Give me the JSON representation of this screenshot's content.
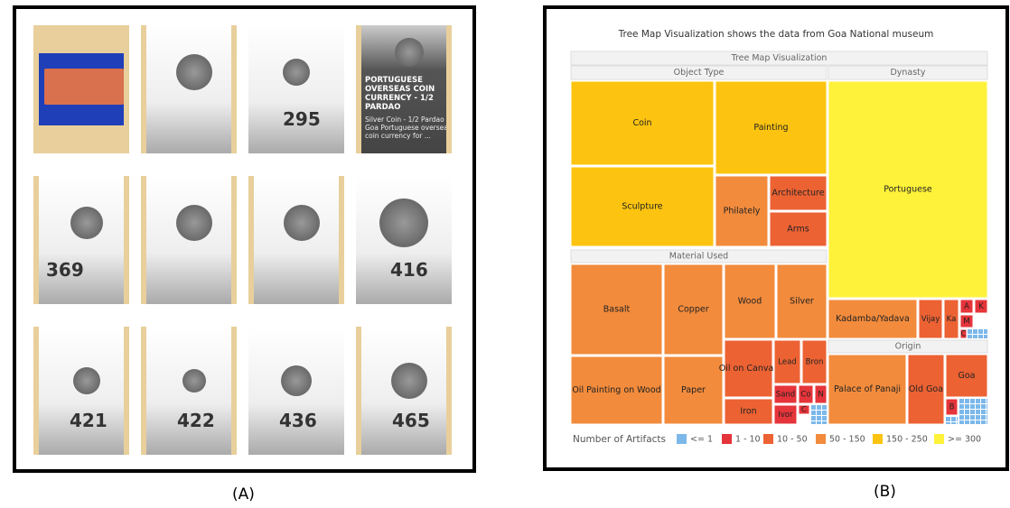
{
  "panel_a": {
    "tiles": [
      {
        "number": null
      },
      {
        "number": null
      },
      {
        "number": "295"
      },
      {
        "title": "PORTUGUESE OVERSEAS COIN CURRENCY - 1/2 PARDAO",
        "description": "Silver Coin - 1/2 Pardao of Goa Portuguese overseas coin currency for ..."
      },
      {
        "number": "369"
      },
      {
        "number": null
      },
      {
        "number": null
      },
      {
        "number": "416"
      },
      {
        "number": "421"
      },
      {
        "number": "422"
      },
      {
        "number": "436"
      },
      {
        "number": "465"
      }
    ],
    "caption": "(A)"
  },
  "panel_b": {
    "title": "Tree Map Visualization shows the data from Goa National museum",
    "treemap": {
      "title": "Tree Map Visualization",
      "groups": [
        {
          "name": "Object Type",
          "cells": [
            {
              "label": "Coin",
              "color": "#fcc410"
            },
            {
              "label": "Painting",
              "color": "#fcc410"
            },
            {
              "label": "Sculpture",
              "color": "#fcc410"
            },
            {
              "label": "Philately",
              "color": "#f28b3c"
            },
            {
              "label": "Architecture",
              "color": "#ec6233"
            },
            {
              "label": "Arms",
              "color": "#ec6233"
            }
          ]
        },
        {
          "name": "Material Used",
          "cells": [
            {
              "label": "Basalt",
              "color": "#f28b3c"
            },
            {
              "label": "Copper",
              "color": "#f28b3c"
            },
            {
              "label": "Wood",
              "color": "#f28b3c"
            },
            {
              "label": "Silver",
              "color": "#f28b3c"
            },
            {
              "label": "Oil Painting on Wood",
              "color": "#f28b3c"
            },
            {
              "label": "Paper",
              "color": "#f28b3c"
            },
            {
              "label": "Oil on Canvas",
              "color": "#ec6233"
            },
            {
              "label": "Iron",
              "color": "#ec6233"
            },
            {
              "label": "Lead",
              "color": "#ec6233"
            },
            {
              "label": "Bron",
              "color": "#ec6233"
            },
            {
              "label": "Sand",
              "color": "#e5343a"
            },
            {
              "label": "Co",
              "color": "#e5343a"
            },
            {
              "label": "N",
              "color": "#e5343a"
            },
            {
              "label": "Ivor",
              "color": "#e5343a"
            },
            {
              "label": "C",
              "color": "#e5343a"
            }
          ]
        },
        {
          "name": "Dynasty",
          "cells": [
            {
              "label": "Portuguese",
              "color": "#fff23a"
            },
            {
              "label": "Kadamba/Yadava",
              "color": "#f28b3c"
            },
            {
              "label": "Vijay",
              "color": "#ec6233"
            },
            {
              "label": "Ka",
              "color": "#ec6233"
            },
            {
              "label": "A",
              "color": "#e5343a"
            },
            {
              "label": "K",
              "color": "#e5343a"
            },
            {
              "label": "M",
              "color": "#e5343a"
            },
            {
              "label": "C",
              "color": "#e5343a"
            }
          ]
        },
        {
          "name": "Origin",
          "cells": [
            {
              "label": "Palace of Panaji",
              "color": "#f28b3c"
            },
            {
              "label": "Old Goa",
              "color": "#ec6233"
            },
            {
              "label": "Goa",
              "color": "#ec6233"
            },
            {
              "label": "B",
              "color": "#e5343a"
            }
          ]
        }
      ]
    },
    "legend": {
      "title": "Number of Artifacts",
      "items": [
        {
          "label": "<= 1",
          "color": "#7cb8ea"
        },
        {
          "label": "1 - 10",
          "color": "#e5343a"
        },
        {
          "label": "10 - 50",
          "color": "#ec6233"
        },
        {
          "label": "50 - 150",
          "color": "#f28b3c"
        },
        {
          "label": "150 - 250",
          "color": "#fcc410"
        },
        {
          "label": ">= 300",
          "color": "#fff23a"
        }
      ]
    },
    "caption": "(B)"
  }
}
